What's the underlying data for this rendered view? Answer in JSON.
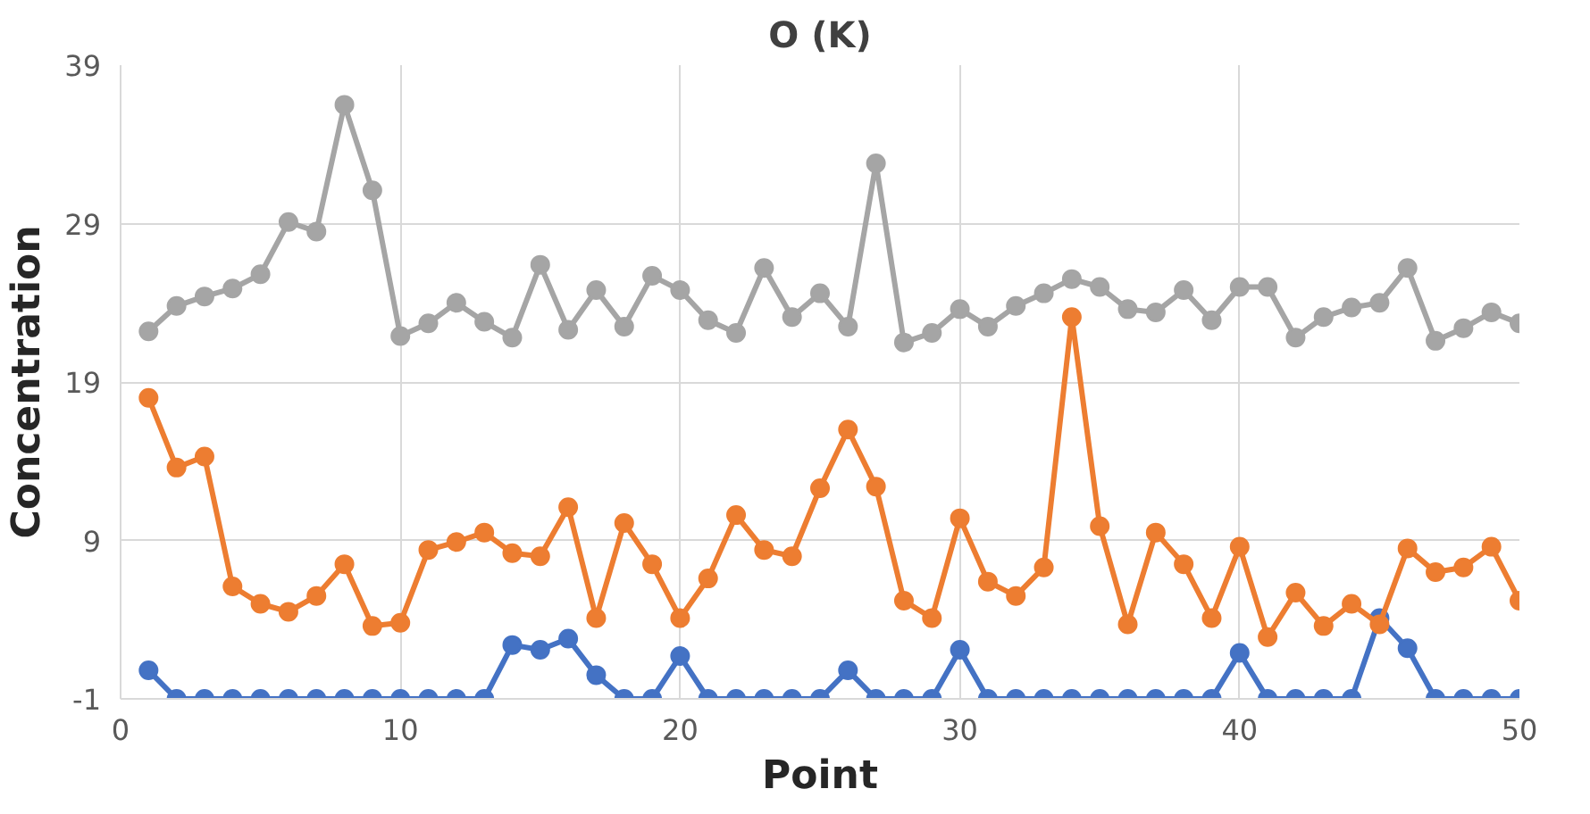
{
  "chart_data": {
    "type": "line",
    "title": "O (K)",
    "xlabel": "Point",
    "ylabel": "Concentration",
    "x": [
      1,
      2,
      3,
      4,
      5,
      6,
      7,
      8,
      9,
      10,
      11,
      12,
      13,
      14,
      15,
      16,
      17,
      18,
      19,
      20,
      21,
      22,
      23,
      24,
      25,
      26,
      27,
      28,
      29,
      30,
      31,
      32,
      33,
      34,
      35,
      36,
      37,
      38,
      39,
      40,
      41,
      42,
      43,
      44,
      45,
      46,
      47,
      48,
      49,
      50
    ],
    "series": [
      {
        "color": "#4472c4",
        "values": [
          0.8,
          -1,
          -1,
          -1,
          -1,
          -1,
          -1,
          -1,
          -1,
          -1,
          -1,
          -1,
          -1,
          2.4,
          2.1,
          2.8,
          0.5,
          -1,
          -1,
          1.7,
          -1,
          -1,
          -1,
          -1,
          -1,
          0.8,
          -1,
          -1,
          -1,
          2.1,
          -1,
          -1,
          -1,
          -1,
          -1,
          -1,
          -1,
          -1,
          -1,
          1.9,
          -1,
          -1,
          -1,
          -1,
          4.1,
          2.2,
          -1,
          -1,
          -1,
          -1
        ]
      },
      {
        "color": "#ed7d31",
        "values": [
          18.0,
          13.6,
          14.3,
          6.1,
          5.0,
          4.5,
          5.5,
          7.5,
          3.6,
          3.8,
          8.4,
          8.9,
          9.5,
          8.2,
          8.0,
          11.1,
          4.1,
          10.1,
          7.5,
          4.1,
          6.6,
          10.6,
          8.4,
          8.0,
          12.3,
          16.0,
          12.4,
          5.2,
          4.1,
          10.4,
          6.4,
          5.5,
          7.3,
          23.1,
          9.9,
          3.7,
          9.5,
          7.5,
          4.1,
          8.6,
          2.9,
          5.7,
          3.6,
          5.0,
          3.7,
          8.5,
          7.0,
          7.3,
          8.6,
          5.2
        ]
      },
      {
        "color": "#a5a5a5",
        "values": [
          22.2,
          23.8,
          24.4,
          24.9,
          25.8,
          29.1,
          28.5,
          36.5,
          31.1,
          21.9,
          22.7,
          24.0,
          22.8,
          21.8,
          26.4,
          22.3,
          24.8,
          22.5,
          25.7,
          24.8,
          22.9,
          22.1,
          26.2,
          23.1,
          24.6,
          22.5,
          32.8,
          21.5,
          22.1,
          23.6,
          22.5,
          23.8,
          24.6,
          25.5,
          25.0,
          23.6,
          23.4,
          24.8,
          22.9,
          25.0,
          25.0,
          21.8,
          23.1,
          23.7,
          24.0,
          26.2,
          21.6,
          22.4,
          23.4,
          22.7
        ]
      }
    ],
    "xlim": [
      0,
      50
    ],
    "xticks": [
      0,
      10,
      20,
      30,
      40,
      50
    ],
    "ylim": [
      -1,
      39
    ],
    "yticks": [
      -1,
      9,
      19,
      29,
      39
    ],
    "grid": true,
    "marker": "circle",
    "line_style": "solid"
  }
}
